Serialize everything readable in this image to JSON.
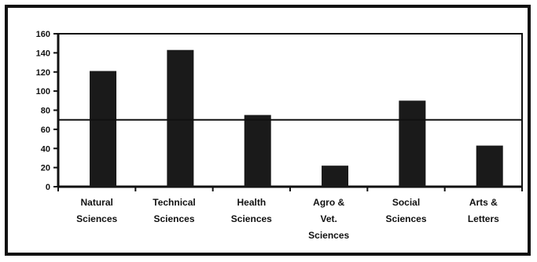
{
  "chart_data": {
    "type": "bar",
    "categories": [
      [
        "Natural",
        "Sciences"
      ],
      [
        "Technical",
        "Sciences"
      ],
      [
        "Health",
        "Sciences"
      ],
      [
        "Agro &",
        "Vet.",
        "Sciences"
      ],
      [
        "Social",
        "Sciences"
      ],
      [
        "Arts &",
        "Letters"
      ]
    ],
    "values": [
      121,
      143,
      75,
      22,
      90,
      43
    ],
    "reference_line": 70,
    "ylim": [
      0,
      160
    ],
    "yticks": [
      "0",
      "20",
      "40",
      "60",
      "80",
      "100",
      "120",
      "140",
      "160"
    ],
    "title": "",
    "xlabel": "",
    "ylabel": "",
    "grid": false,
    "bar_color": "#1a1a1a",
    "axis_color": "#111111"
  }
}
